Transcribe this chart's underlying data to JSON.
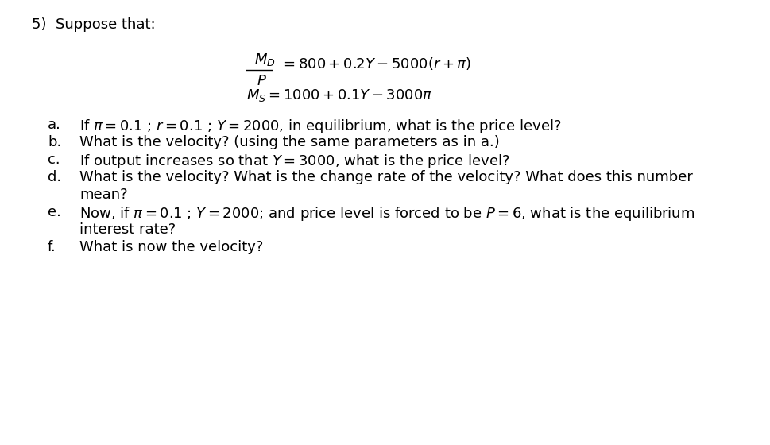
{
  "background_color": "#ffffff",
  "font_size": 13.0,
  "title": "5)  Suppose that:",
  "eq_fraction_top": "$M_D$",
  "eq_fraction_bot": "$P$",
  "eq_fraction_rhs": "$= 800 + 0.2Y - 5000(r + \\pi)$",
  "eq2": "$M_S = 1000 + 0.1Y - 3000\\pi$",
  "items": [
    {
      "label": "a.",
      "lines": [
        "If $\\pi = 0.1$ ; $r = 0.1$ ; $Y = 2000$, in equilibrium, what is the price level?"
      ]
    },
    {
      "label": "b.",
      "lines": [
        "What is the velocity? (using the same parameters as in a.)"
      ]
    },
    {
      "label": "c.",
      "lines": [
        "If output increases so that $Y = 3000$, what is the price level?"
      ]
    },
    {
      "label": "d.",
      "lines": [
        "What is the velocity? What is the change rate of the velocity? What does this number",
        "mean?"
      ]
    },
    {
      "label": "e.",
      "lines": [
        "Now, if $\\pi = 0.1$ ; $Y = 2000$; and price level is forced to be $P = 6$, what is the equilibrium",
        "interest rate?"
      ]
    },
    {
      "label": "f.",
      "lines": [
        "What is now the velocity?"
      ]
    }
  ]
}
